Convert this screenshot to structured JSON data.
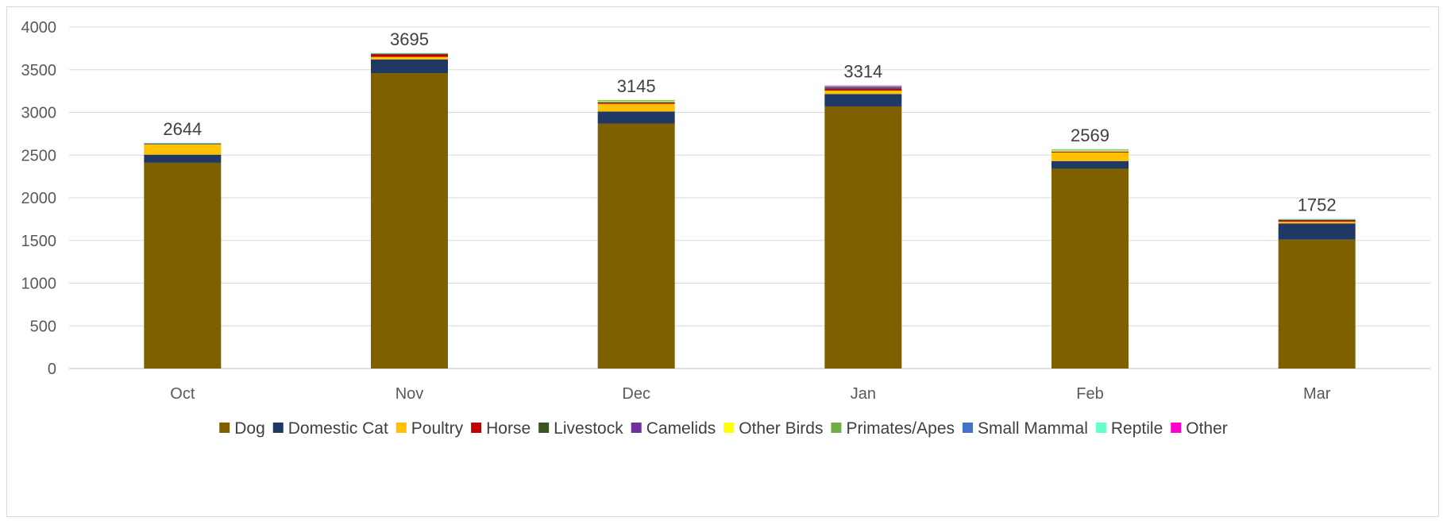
{
  "chart_data": {
    "type": "bar",
    "stacked": true,
    "title": "",
    "xlabel": "",
    "ylabel": "",
    "ylim": [
      0,
      4000
    ],
    "yticks": [
      0,
      500,
      1000,
      1500,
      2000,
      2500,
      3000,
      3500,
      4000
    ],
    "grid": true,
    "legend_position": "bottom",
    "categories": [
      "Oct",
      "Nov",
      "Dec",
      "Jan",
      "Feb",
      "Mar"
    ],
    "totals": [
      2644,
      3695,
      3145,
      3314,
      2569,
      1752
    ],
    "series": [
      {
        "name": "Dog",
        "color": "#7f6000",
        "values": [
          2410,
          3460,
          2870,
          3070,
          2340,
          1510
        ]
      },
      {
        "name": "Domestic Cat",
        "color": "#203864",
        "values": [
          95,
          160,
          140,
          145,
          90,
          190
        ]
      },
      {
        "name": "Poultry",
        "color": "#ffc000",
        "values": [
          120,
          30,
          90,
          40,
          100,
          20
        ]
      },
      {
        "name": "Horse",
        "color": "#c00000",
        "values": [
          0,
          30,
          10,
          15,
          5,
          15
        ]
      },
      {
        "name": "Livestock",
        "color": "#375623",
        "values": [
          5,
          5,
          10,
          10,
          5,
          5
        ]
      },
      {
        "name": "Camelids",
        "color": "#7030a0",
        "values": [
          2,
          3,
          3,
          20,
          2,
          3
        ]
      },
      {
        "name": "Other Birds",
        "color": "#ffff00",
        "values": [
          5,
          3,
          10,
          5,
          15,
          3
        ]
      },
      {
        "name": "Primates/Apes",
        "color": "#70ad47",
        "values": [
          2,
          2,
          10,
          3,
          3,
          2
        ]
      },
      {
        "name": "Small Mammal",
        "color": "#4472c4",
        "values": [
          2,
          1,
          1,
          2,
          4,
          2
        ]
      },
      {
        "name": "Reptile",
        "color": "#66ffcc",
        "values": [
          3,
          1,
          1,
          2,
          5,
          2
        ]
      },
      {
        "name": "Other",
        "color": "#ff00cc",
        "values": [
          0,
          0,
          0,
          2,
          0,
          0
        ]
      }
    ]
  }
}
